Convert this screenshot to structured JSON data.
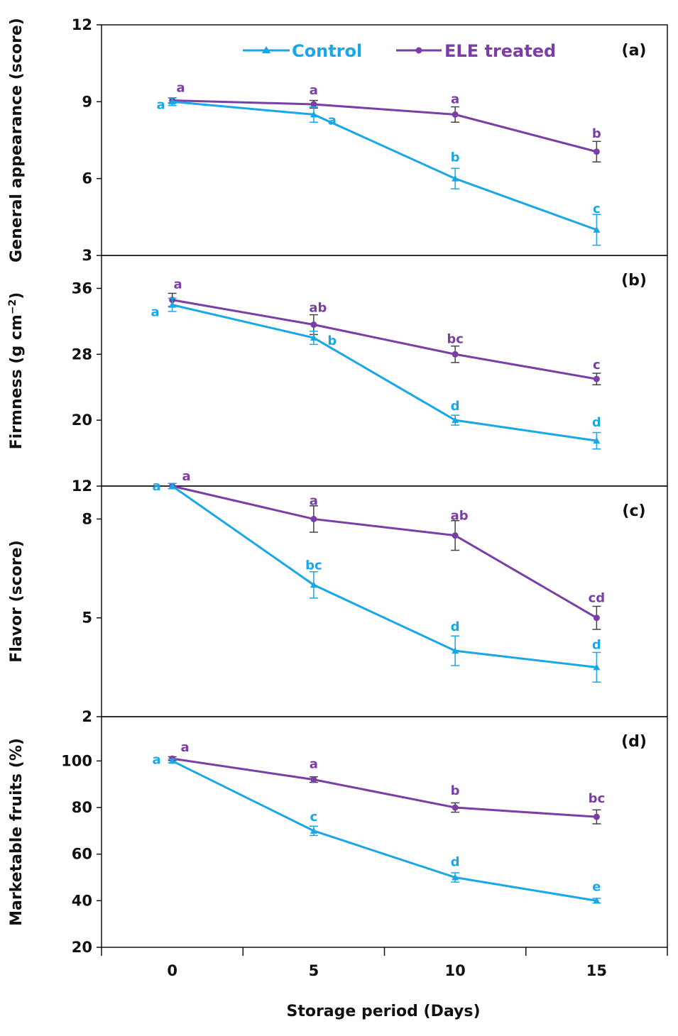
{
  "colors": {
    "control": "#1aa7e8",
    "ele": "#7a3ea6",
    "axis": "#111111",
    "errorbar_ele": "#444444"
  },
  "legend": {
    "control_label": "Control",
    "ele_label": "ELE treated"
  },
  "xaxis": {
    "label": "Storage period (Days)",
    "ticks": [
      "0",
      "5",
      "10",
      "15"
    ],
    "values": [
      0,
      5,
      10,
      15
    ],
    "xlim": [
      -2.5,
      17.5
    ]
  },
  "chart_data": [
    {
      "type": "line",
      "panel_label": "(a)",
      "ylabel": "General appearance (score)",
      "ylabel_super": "",
      "ylabel_tail": "",
      "ylim": [
        3,
        12
      ],
      "yticks": [
        3,
        6,
        9,
        12
      ],
      "x": [
        0,
        5,
        10,
        15
      ],
      "series": [
        {
          "name": "Control",
          "values": [
            9.0,
            8.5,
            6.0,
            4.0
          ],
          "errors": [
            0.15,
            0.3,
            0.4,
            0.6
          ],
          "letters": [
            "a",
            "a",
            "b",
            "c"
          ]
        },
        {
          "name": "ELE treated",
          "values": [
            9.05,
            8.9,
            8.5,
            7.05
          ],
          "errors": [
            0.1,
            0.15,
            0.3,
            0.4
          ],
          "letters": [
            "a",
            "a",
            "a",
            "b"
          ]
        }
      ]
    },
    {
      "type": "line",
      "panel_label": "(b)",
      "ylabel": "Firmness (g cm",
      "ylabel_super": "−2",
      "ylabel_tail": ")",
      "ylim": [
        12,
        40
      ],
      "yticks": [
        12,
        20,
        28,
        36
      ],
      "x": [
        0,
        5,
        10,
        15
      ],
      "series": [
        {
          "name": "Control",
          "values": [
            34.0,
            30.0,
            20.0,
            17.5
          ],
          "errors": [
            0.8,
            0.8,
            0.6,
            1.0
          ],
          "letters": [
            "a",
            "b",
            "d",
            "d"
          ]
        },
        {
          "name": "ELE treated",
          "values": [
            34.6,
            31.6,
            28.0,
            25.0
          ],
          "errors": [
            0.8,
            1.2,
            1.0,
            0.7
          ],
          "letters": [
            "a",
            "ab",
            "bc",
            "c"
          ]
        }
      ]
    },
    {
      "type": "line",
      "panel_label": "(c)",
      "ylabel": "Flavor (score)",
      "ylabel_super": "",
      "ylabel_tail": "",
      "ylim": [
        2,
        9
      ],
      "yticks": [
        2,
        5,
        8
      ],
      "x": [
        0,
        5,
        10,
        15
      ],
      "series": [
        {
          "name": "Control",
          "values": [
            9.0,
            6.0,
            4.0,
            3.5
          ],
          "errors": [
            0.08,
            0.4,
            0.45,
            0.45
          ],
          "letters": [
            "a",
            "bc",
            "d",
            "d"
          ]
        },
        {
          "name": "ELE treated",
          "values": [
            9.0,
            8.0,
            7.5,
            5.0
          ],
          "errors": [
            0.08,
            0.4,
            0.45,
            0.35
          ],
          "letters": [
            "a",
            "a",
            "ab",
            "cd"
          ]
        }
      ]
    },
    {
      "type": "line",
      "panel_label": "(d)",
      "ylabel": "Marketable fruits (%)",
      "ylabel_super": "",
      "ylabel_tail": "",
      "ylim": [
        20,
        119
      ],
      "yticks": [
        20,
        40,
        60,
        80,
        100
      ],
      "x": [
        0,
        5,
        10,
        15
      ],
      "series": [
        {
          "name": "Control",
          "values": [
            100,
            70,
            50,
            40
          ],
          "errors": [
            0.8,
            2.0,
            2.0,
            1.0
          ],
          "letters": [
            "a",
            "c",
            "d",
            "e"
          ]
        },
        {
          "name": "ELE treated",
          "values": [
            101,
            92,
            80,
            76
          ],
          "errors": [
            0.8,
            1.2,
            2.0,
            3.0
          ],
          "letters": [
            "a",
            "a",
            "b",
            "bc"
          ]
        }
      ]
    }
  ]
}
